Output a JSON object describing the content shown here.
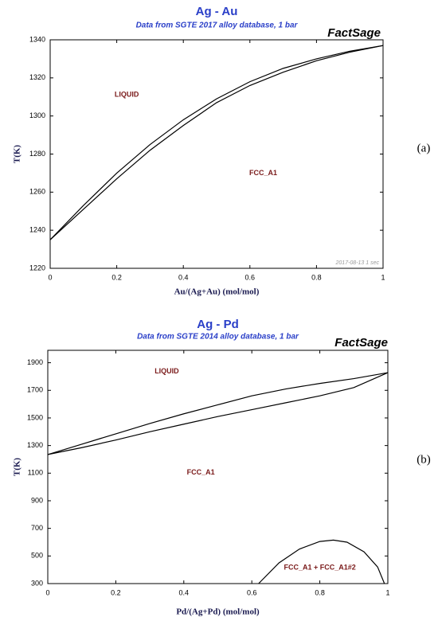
{
  "chart_data": [
    {
      "type": "line",
      "title": "Ag - Au",
      "subtitle": "Data from SGTE 2017 alloy database, 1 bar",
      "brand": "FactSage",
      "x_label": "Au/(Ag+Au) (mol/mol)",
      "y_label": "T(K)",
      "panel_label": "(a)",
      "footnote": "2017-08-13  1 sec",
      "xlim": [
        0,
        1
      ],
      "xticks": [
        0,
        0.2,
        0.4,
        0.6,
        0.8,
        1
      ],
      "ylim": [
        1220,
        1340
      ],
      "yticks": [
        1220,
        1240,
        1260,
        1280,
        1300,
        1320,
        1340
      ],
      "grid": false,
      "series": [
        {
          "color": "#000000",
          "x": [
            0,
            0.1,
            0.2,
            0.3,
            0.4,
            0.5,
            0.6,
            0.7,
            0.8,
            0.9,
            1
          ],
          "values": [
            1235,
            1253,
            1270,
            1285,
            1298,
            1309,
            1318,
            1325,
            1330,
            1334,
            1337
          ]
        },
        {
          "color": "#000000",
          "x": [
            0,
            0.1,
            0.2,
            0.3,
            0.4,
            0.5,
            0.6,
            0.7,
            0.8,
            0.9,
            1
          ],
          "values": [
            1235,
            1251,
            1267,
            1282,
            1295,
            1307,
            1316,
            1323,
            1329,
            1333.5,
            1337
          ]
        }
      ],
      "annotations": [
        {
          "text": "LIQUID",
          "x": 0.23,
          "y": 1311
        },
        {
          "text": "FCC_A1",
          "x": 0.64,
          "y": 1270
        }
      ]
    },
    {
      "type": "line",
      "title": "Ag - Pd",
      "subtitle": "Data from SGTE 2014 alloy database, 1 bar",
      "brand": "FactSage",
      "x_label": "Pd/(Ag+Pd) (mol/mol)",
      "y_label": "T(K)",
      "panel_label": "(b)",
      "xlim": [
        0,
        1
      ],
      "xticks": [
        0,
        0.2,
        0.4,
        0.6,
        0.8,
        1
      ],
      "ylim": [
        300,
        1990
      ],
      "yticks": [
        300,
        500,
        700,
        900,
        1100,
        1300,
        1500,
        1700,
        1900
      ],
      "grid": false,
      "series": [
        {
          "color": "#000000",
          "x": [
            0,
            0.1,
            0.2,
            0.3,
            0.4,
            0.5,
            0.6,
            0.7,
            0.8,
            0.9,
            1
          ],
          "values": [
            1235,
            1310,
            1385,
            1460,
            1530,
            1595,
            1660,
            1710,
            1750,
            1785,
            1828
          ]
        },
        {
          "color": "#000000",
          "x": [
            0,
            0.1,
            0.2,
            0.3,
            0.4,
            0.5,
            0.6,
            0.7,
            0.8,
            0.9,
            1
          ],
          "values": [
            1235,
            1285,
            1340,
            1400,
            1455,
            1510,
            1560,
            1610,
            1660,
            1720,
            1828
          ]
        },
        {
          "color": "#000000",
          "x": [
            0.62,
            0.68,
            0.74,
            0.8,
            0.84,
            0.88,
            0.93,
            0.97,
            0.99
          ],
          "values": [
            300,
            450,
            550,
            605,
            615,
            600,
            530,
            420,
            300
          ]
        }
      ],
      "annotations": [
        {
          "text": "LIQUID",
          "x": 0.35,
          "y": 1836
        },
        {
          "text": "FCC_A1",
          "x": 0.45,
          "y": 1105
        },
        {
          "text": "FCC_A1 + FCC_A1#2",
          "x": 0.8,
          "y": 415
        }
      ]
    }
  ]
}
